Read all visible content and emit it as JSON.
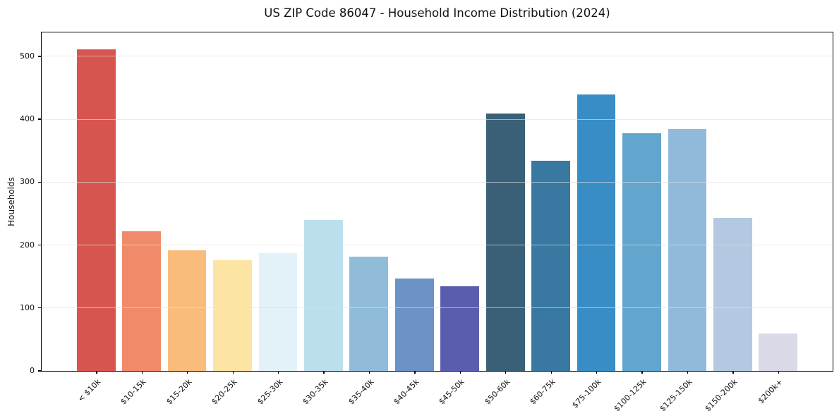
{
  "chart_data": {
    "type": "bar",
    "title": "US ZIP Code 86047 - Household Income Distribution (2024)",
    "xlabel": "",
    "ylabel": "Households",
    "categories": [
      "< $10k",
      "$10-15k",
      "$15-20k",
      "$20-25k",
      "$25-30k",
      "$30-35k",
      "$35-40k",
      "$40-45k",
      "$45-50k",
      "$50-60k",
      "$60-75k",
      "$75-100k",
      "$100-125k",
      "$125-150k",
      "$150-200k",
      "$200k+"
    ],
    "values": [
      511,
      222,
      192,
      176,
      187,
      240,
      182,
      147,
      135,
      409,
      334,
      439,
      378,
      384,
      243,
      59
    ],
    "bar_colors": [
      "#d6564f",
      "#f18a69",
      "#f9bc7d",
      "#fce4a4",
      "#e3f1f8",
      "#bbdfed",
      "#90bcda",
      "#6b93c6",
      "#5a5dae",
      "#3a6078",
      "#3878a1",
      "#398dc5",
      "#62a6cd",
      "#90badb",
      "#b3c8e1",
      "#d8dae8"
    ],
    "ylim": [
      0,
      538
    ],
    "yticks": [
      0,
      100,
      200,
      300,
      400,
      500
    ],
    "grid": "horizontal",
    "legend": "none",
    "x_tick_rotation": 45
  }
}
